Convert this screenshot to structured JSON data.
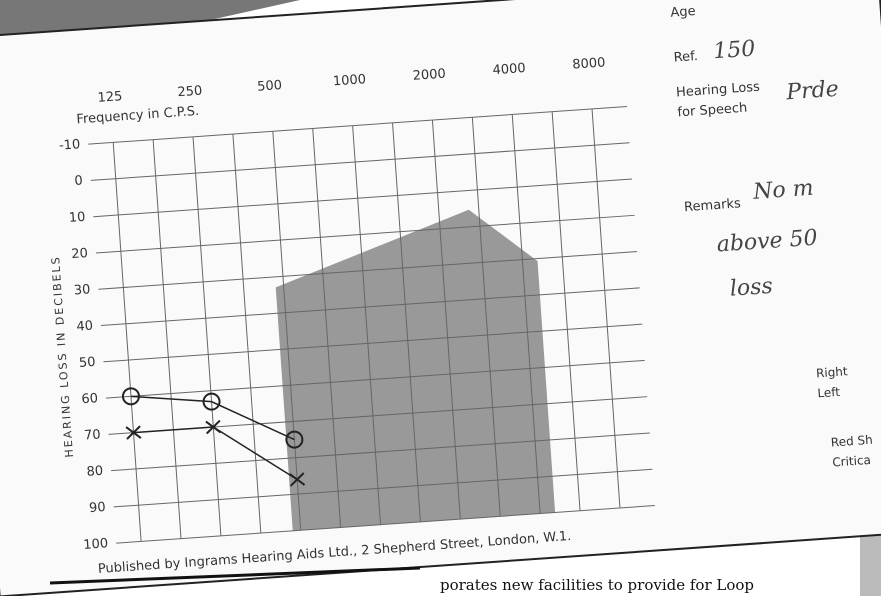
{
  "chart_data": {
    "type": "line",
    "x_label": "Frequency in C.P.S.",
    "y_label": "HEARING LOSS IN DECIBELS",
    "categories": [
      "125",
      "250",
      "500",
      "1000",
      "2000",
      "4000",
      "8000"
    ],
    "series": [
      {
        "name": "Right",
        "color": "#222222",
        "marker": "circle",
        "values": [
          60,
          63,
          75,
          null,
          null,
          null,
          null
        ]
      },
      {
        "name": "Left",
        "color": "#222222",
        "marker": "cross",
        "values": [
          70,
          70,
          86,
          null,
          null,
          null,
          null
        ]
      }
    ],
    "ylim": [
      -10,
      100
    ],
    "yticks": [
      -10,
      0,
      10,
      20,
      30,
      40,
      50,
      60,
      70,
      80,
      90,
      100
    ],
    "y_inverted": true,
    "grid": true
  },
  "card": {
    "age": "Age",
    "ref": "Ref.",
    "ref_value": "150",
    "hearing_loss": "Hearing Loss",
    "for_speech": "for Speech",
    "speech_value": "Prde",
    "remarks": "Remarks",
    "remarks_1": "No m",
    "remarks_2": "above 50",
    "remarks_3": "loss",
    "red_1": "Red Sh",
    "red_2": "Critica",
    "publisher": "Published by Ingrams Hearing Aids Ltd., 2 Shepherd Street, London, W.1."
  },
  "page_text": "porates new facilities to provide for Loop"
}
